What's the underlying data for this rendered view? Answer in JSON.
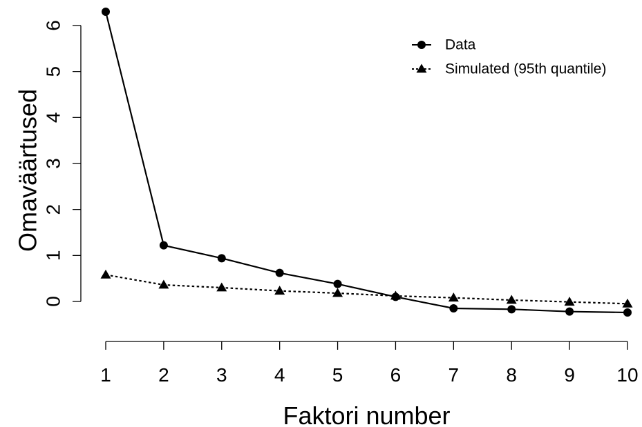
{
  "chart_data": {
    "type": "line",
    "xlabel": "Faktori number",
    "ylabel": "Omaväärtused",
    "x": [
      1,
      2,
      3,
      4,
      5,
      6,
      7,
      8,
      9,
      10
    ],
    "x_ticks": [
      "1",
      "2",
      "3",
      "4",
      "5",
      "6",
      "7",
      "8",
      "9",
      "10"
    ],
    "y_ticks": [
      "0",
      "1",
      "2",
      "3",
      "4",
      "5",
      "6"
    ],
    "xlim": [
      1,
      10
    ],
    "ylim": [
      0,
      6
    ],
    "grid": false,
    "legend_position": "top-right",
    "series": [
      {
        "name": "Data",
        "marker": "circle",
        "line_style": "solid",
        "color": "#000000",
        "values": [
          6.3,
          1.22,
          0.94,
          0.62,
          0.38,
          0.1,
          -0.15,
          -0.17,
          -0.22,
          -0.24
        ]
      },
      {
        "name": "Simulated (95th quantile)",
        "marker": "triangle",
        "line_style": "dotted",
        "color": "#000000",
        "values": [
          0.58,
          0.36,
          0.3,
          0.23,
          0.18,
          0.12,
          0.08,
          0.03,
          -0.01,
          -0.05
        ]
      }
    ]
  }
}
